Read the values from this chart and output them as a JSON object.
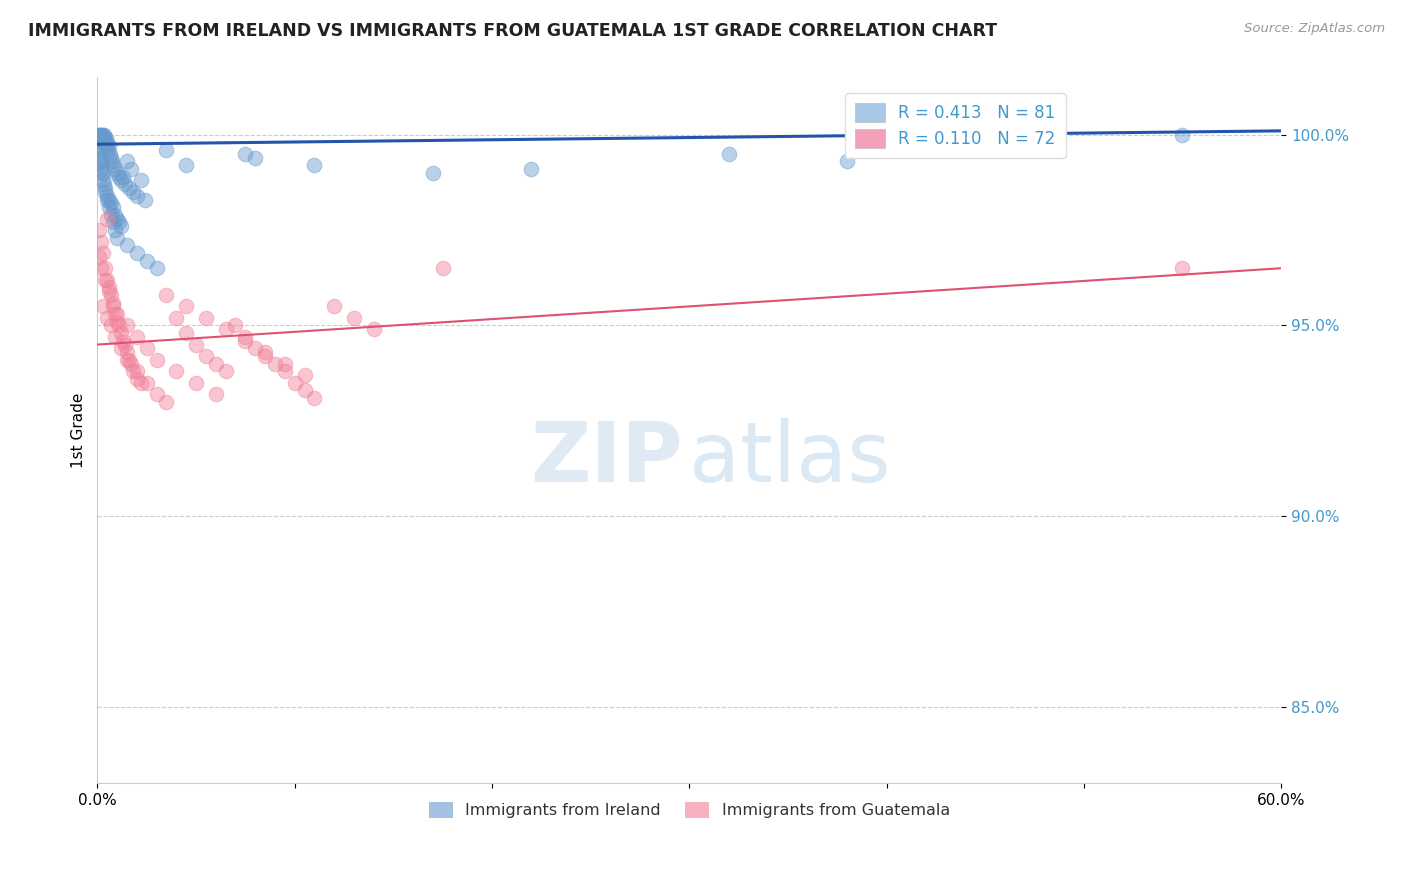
{
  "title": "IMMIGRANTS FROM IRELAND VS IMMIGRANTS FROM GUATEMALA 1ST GRADE CORRELATION CHART",
  "source": "Source: ZipAtlas.com",
  "ylabel": "1st Grade",
  "xlim": [
    0.0,
    60.0
  ],
  "ylim": [
    83.0,
    101.5
  ],
  "y_ticks": [
    85.0,
    90.0,
    95.0,
    100.0
  ],
  "legend_entries": [
    {
      "label": "R = 0.413   N = 81",
      "color": "#a8c8e8"
    },
    {
      "label": "R = 0.110   N = 72",
      "color": "#f4a0b8"
    }
  ],
  "legend_bottom": [
    "Immigrants from Ireland",
    "Immigrants from Guatemala"
  ],
  "ireland_color": "#6699cc",
  "guatemala_color": "#f08098",
  "ireland_line_color": "#2255aa",
  "guatemala_line_color": "#e05070",
  "ireland_points": [
    [
      0.05,
      100.0
    ],
    [
      0.08,
      100.0
    ],
    [
      0.1,
      100.0
    ],
    [
      0.12,
      100.0
    ],
    [
      0.14,
      99.95
    ],
    [
      0.16,
      100.0
    ],
    [
      0.18,
      99.9
    ],
    [
      0.2,
      99.95
    ],
    [
      0.22,
      100.0
    ],
    [
      0.24,
      99.85
    ],
    [
      0.26,
      99.9
    ],
    [
      0.28,
      100.0
    ],
    [
      0.3,
      99.8
    ],
    [
      0.32,
      100.0
    ],
    [
      0.35,
      99.9
    ],
    [
      0.38,
      99.85
    ],
    [
      0.4,
      99.8
    ],
    [
      0.42,
      99.9
    ],
    [
      0.45,
      99.75
    ],
    [
      0.48,
      99.7
    ],
    [
      0.5,
      99.8
    ],
    [
      0.55,
      99.6
    ],
    [
      0.6,
      99.7
    ],
    [
      0.65,
      99.5
    ],
    [
      0.7,
      99.4
    ],
    [
      0.75,
      99.3
    ],
    [
      0.8,
      99.2
    ],
    [
      0.9,
      99.1
    ],
    [
      1.0,
      99.0
    ],
    [
      1.1,
      98.9
    ],
    [
      1.2,
      98.8
    ],
    [
      1.3,
      98.9
    ],
    [
      1.4,
      98.7
    ],
    [
      1.5,
      99.3
    ],
    [
      1.6,
      98.6
    ],
    [
      1.7,
      99.1
    ],
    [
      1.8,
      98.5
    ],
    [
      2.0,
      98.4
    ],
    [
      2.2,
      98.8
    ],
    [
      2.4,
      98.3
    ],
    [
      0.1,
      99.5
    ],
    [
      0.15,
      99.3
    ],
    [
      0.2,
      99.1
    ],
    [
      0.25,
      99.0
    ],
    [
      0.3,
      98.8
    ],
    [
      0.35,
      98.7
    ],
    [
      0.4,
      98.5
    ],
    [
      0.5,
      98.4
    ],
    [
      0.6,
      98.3
    ],
    [
      0.7,
      98.2
    ],
    [
      0.8,
      98.1
    ],
    [
      0.9,
      97.9
    ],
    [
      1.0,
      97.8
    ],
    [
      1.1,
      97.7
    ],
    [
      1.2,
      97.6
    ],
    [
      3.5,
      99.6
    ],
    [
      4.5,
      99.2
    ],
    [
      7.5,
      99.5
    ],
    [
      8.0,
      99.4
    ],
    [
      11.0,
      99.2
    ],
    [
      17.0,
      99.0
    ],
    [
      22.0,
      99.1
    ],
    [
      32.0,
      99.5
    ],
    [
      38.0,
      99.3
    ],
    [
      55.0,
      100.0
    ],
    [
      0.1,
      99.7
    ],
    [
      0.15,
      99.6
    ],
    [
      0.2,
      99.4
    ],
    [
      0.25,
      99.2
    ],
    [
      0.3,
      99.0
    ],
    [
      0.4,
      98.6
    ],
    [
      0.5,
      98.3
    ],
    [
      0.6,
      98.1
    ],
    [
      0.7,
      97.9
    ],
    [
      0.8,
      97.7
    ],
    [
      0.9,
      97.5
    ],
    [
      1.0,
      97.3
    ],
    [
      1.5,
      97.1
    ],
    [
      2.0,
      96.9
    ],
    [
      2.5,
      96.7
    ],
    [
      3.0,
      96.5
    ]
  ],
  "guatemala_points": [
    [
      0.1,
      97.5
    ],
    [
      0.2,
      97.2
    ],
    [
      0.3,
      96.9
    ],
    [
      0.4,
      96.5
    ],
    [
      0.5,
      96.2
    ],
    [
      0.6,
      96.0
    ],
    [
      0.7,
      95.8
    ],
    [
      0.8,
      95.5
    ],
    [
      0.9,
      95.3
    ],
    [
      1.0,
      95.1
    ],
    [
      1.1,
      95.0
    ],
    [
      1.2,
      94.8
    ],
    [
      1.3,
      94.6
    ],
    [
      1.4,
      94.5
    ],
    [
      1.5,
      94.3
    ],
    [
      1.6,
      94.1
    ],
    [
      1.7,
      94.0
    ],
    [
      1.8,
      93.8
    ],
    [
      2.0,
      93.6
    ],
    [
      2.2,
      93.5
    ],
    [
      0.3,
      95.5
    ],
    [
      0.5,
      95.2
    ],
    [
      0.7,
      95.0
    ],
    [
      0.9,
      94.7
    ],
    [
      1.2,
      94.4
    ],
    [
      1.5,
      94.1
    ],
    [
      2.0,
      93.8
    ],
    [
      2.5,
      93.5
    ],
    [
      3.0,
      93.2
    ],
    [
      3.5,
      93.0
    ],
    [
      4.0,
      95.2
    ],
    [
      4.5,
      94.8
    ],
    [
      5.0,
      94.5
    ],
    [
      5.5,
      94.2
    ],
    [
      6.0,
      94.0
    ],
    [
      6.5,
      93.8
    ],
    [
      7.0,
      95.0
    ],
    [
      7.5,
      94.7
    ],
    [
      8.0,
      94.4
    ],
    [
      8.5,
      94.2
    ],
    [
      9.0,
      94.0
    ],
    [
      9.5,
      93.8
    ],
    [
      10.0,
      93.5
    ],
    [
      10.5,
      93.3
    ],
    [
      11.0,
      93.1
    ],
    [
      12.0,
      95.5
    ],
    [
      13.0,
      95.2
    ],
    [
      14.0,
      94.9
    ],
    [
      0.2,
      96.5
    ],
    [
      0.4,
      96.2
    ],
    [
      0.6,
      95.9
    ],
    [
      0.8,
      95.6
    ],
    [
      1.0,
      95.3
    ],
    [
      1.5,
      95.0
    ],
    [
      2.0,
      94.7
    ],
    [
      2.5,
      94.4
    ],
    [
      3.0,
      94.1
    ],
    [
      4.0,
      93.8
    ],
    [
      5.0,
      93.5
    ],
    [
      6.0,
      93.2
    ],
    [
      3.5,
      95.8
    ],
    [
      4.5,
      95.5
    ],
    [
      5.5,
      95.2
    ],
    [
      6.5,
      94.9
    ],
    [
      7.5,
      94.6
    ],
    [
      8.5,
      94.3
    ],
    [
      9.5,
      94.0
    ],
    [
      10.5,
      93.7
    ],
    [
      0.1,
      96.8
    ],
    [
      0.5,
      97.8
    ],
    [
      17.5,
      96.5
    ],
    [
      55.0,
      96.5
    ]
  ],
  "ireland_trendline": [
    [
      0.0,
      99.75
    ],
    [
      60.0,
      100.1
    ]
  ],
  "guatemala_trendline": [
    [
      0.0,
      94.5
    ],
    [
      60.0,
      96.5
    ]
  ]
}
